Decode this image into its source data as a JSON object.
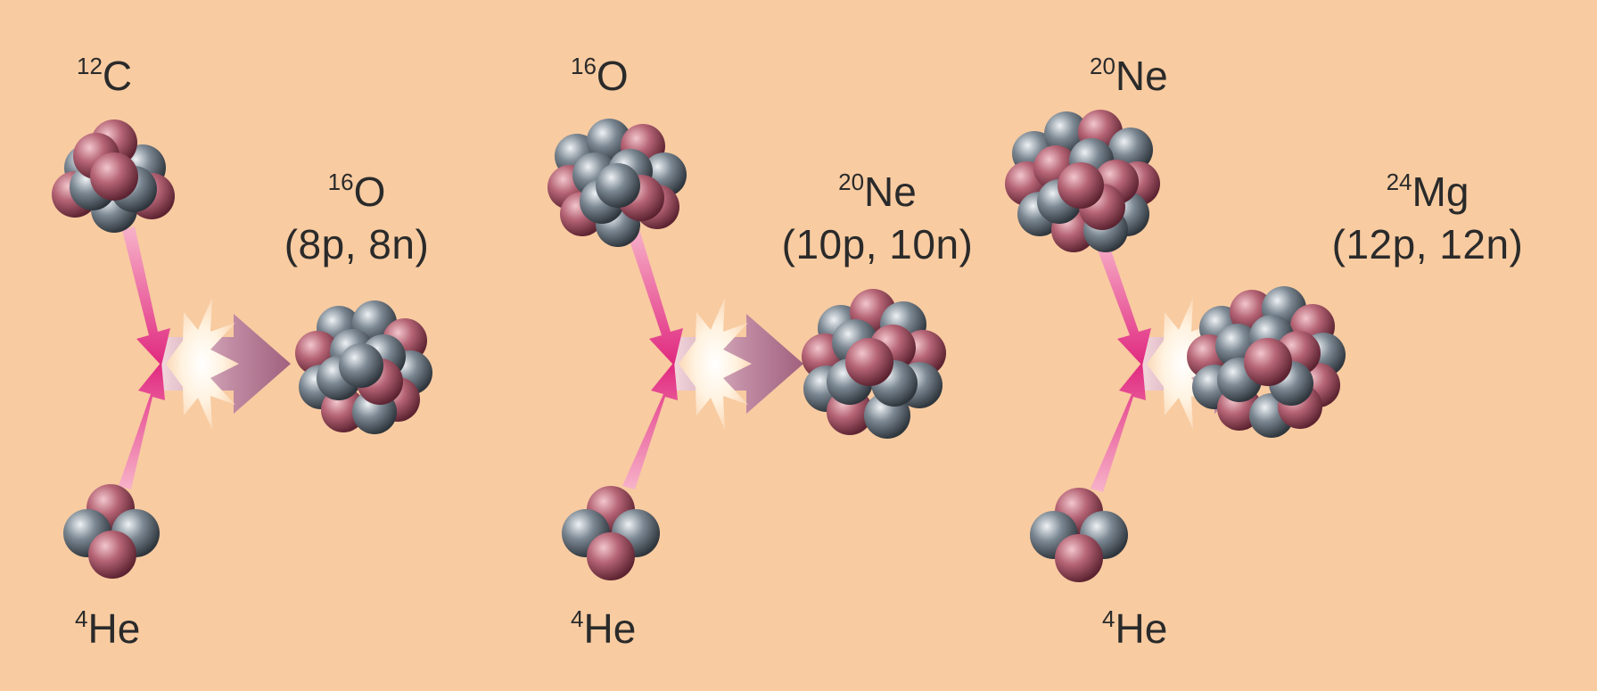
{
  "colors": {
    "background": "#f8cba1",
    "proton": "#a8586a",
    "neutron": "#6b7782",
    "reaction_arrow": "#e23a8c",
    "product_arrow": "#a66c8e",
    "flash": "#fff7e6"
  },
  "reactions": [
    {
      "reactant_top": {
        "mass": "12",
        "symbol": "C"
      },
      "reactant_bottom": {
        "mass": "4",
        "symbol": "He"
      },
      "product": {
        "mass": "16",
        "symbol": "O",
        "composition": "(8p, 8n)"
      }
    },
    {
      "reactant_top": {
        "mass": "16",
        "symbol": "O"
      },
      "reactant_bottom": {
        "mass": "4",
        "symbol": "He"
      },
      "product": {
        "mass": "20",
        "symbol": "Ne",
        "composition": "(10p, 10n)"
      }
    },
    {
      "reactant_top": {
        "mass": "20",
        "symbol": "Ne"
      },
      "reactant_bottom": {
        "mass": "4",
        "symbol": "He"
      },
      "product": {
        "mass": "24",
        "symbol": "Mg",
        "composition": "(12p, 12n)"
      }
    }
  ]
}
